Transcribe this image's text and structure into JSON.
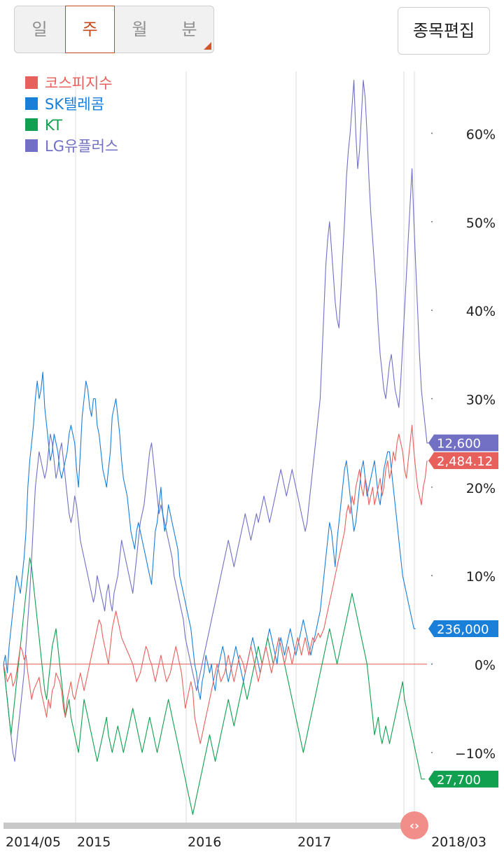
{
  "period_tabs": [
    {
      "label": "일",
      "active": false
    },
    {
      "label": "주",
      "active": true
    },
    {
      "label": "월",
      "active": false
    },
    {
      "label": "분",
      "active": false
    }
  ],
  "edit_button": {
    "label": "종목편집"
  },
  "colors": {
    "kospi": "#e8605c",
    "skt": "#1a7fd9",
    "kt": "#10a050",
    "lgu": "#7270c4",
    "grid": "#dcdcdc",
    "baseline": "#e8605c",
    "scroll": "#c8c8c8",
    "scroll_handle": "#f28e8a"
  },
  "icons": {
    "scroll_handle": "code-arrows-icon"
  },
  "chart_data": {
    "type": "line",
    "x_start": "2014/05",
    "x_end": "2018/03",
    "x_tick_labels": [
      "2014/05",
      "2015",
      "2016",
      "2017",
      "2018/03"
    ],
    "y_unit": "%",
    "ylim": [
      -18,
      67
    ],
    "y_ticks": [
      60,
      50,
      40,
      30,
      20,
      10,
      0,
      -10
    ],
    "y_tick_labels": [
      "60%",
      "50%",
      "40%",
      "30%",
      "20%",
      "10%",
      "0%",
      "−10%"
    ],
    "grid": true,
    "legend_position": "top-left",
    "series": [
      {
        "name": "코스피지수",
        "color": "#e8605c",
        "last_label": "2,484.12",
        "values": [
          0,
          -1,
          -2,
          -1.5,
          -1,
          -2.5,
          -2,
          -1,
          0.5,
          2,
          1.5,
          0.5,
          1,
          -1,
          -2.5,
          -4,
          -3,
          -2.5,
          -2,
          -1.5,
          -3,
          -4,
          -5,
          -6,
          -4,
          -5,
          -3,
          -2.5,
          -1,
          -1.5,
          -2,
          -3,
          -5,
          -6,
          -4,
          -3,
          -2,
          -3.5,
          -4,
          -3,
          -2,
          -1,
          -2,
          -3,
          -2,
          -1,
          0,
          1,
          2,
          3,
          4,
          5,
          4.5,
          3,
          2,
          1,
          0,
          2,
          4,
          5,
          6,
          5,
          4,
          3,
          2.5,
          2,
          1.5,
          1,
          0.5,
          0,
          -1,
          -2,
          -1.5,
          -1,
          0,
          1,
          2,
          1.5,
          0.5,
          0,
          -1,
          -2,
          -1,
          0,
          1,
          0,
          -1,
          -2,
          -1.5,
          -1,
          0,
          1,
          2,
          1,
          0,
          -1,
          -3,
          -5,
          -4,
          -3,
          -2,
          -3,
          -6,
          -7,
          -8,
          -9,
          -8,
          -7,
          -6,
          -5,
          -4,
          -3,
          -2,
          -1,
          0,
          -1,
          -2,
          -1.5,
          -1,
          0,
          1,
          0,
          -1,
          -2,
          -1,
          0,
          1,
          0.5,
          0,
          -1,
          0,
          1,
          2,
          1,
          0,
          -1,
          -2,
          -1,
          0,
          1,
          2,
          1,
          0,
          -1,
          0,
          1,
          2,
          3,
          2,
          1,
          0,
          1,
          2,
          1,
          0,
          1,
          2,
          3,
          2,
          1,
          2,
          3,
          2,
          1,
          2,
          3,
          2.5,
          3,
          3.5,
          3,
          3.5,
          4,
          5,
          6,
          7,
          8,
          9,
          10,
          11,
          12,
          13,
          14,
          15,
          17,
          18,
          17,
          19,
          18,
          20,
          21,
          22,
          20,
          19,
          21,
          20,
          18,
          19,
          20,
          18,
          19,
          20,
          21,
          19,
          20,
          22,
          23,
          21,
          22,
          24,
          23,
          25,
          26,
          25,
          24,
          22,
          21,
          23,
          25,
          27,
          24,
          22,
          20,
          19,
          18,
          20,
          21,
          23
        ]
      },
      {
        "name": "SK텔레콤",
        "color": "#1a7fd9",
        "last_label": "236,000",
        "values": [
          0,
          1,
          -1,
          2,
          4,
          6,
          8,
          10,
          9,
          8,
          10,
          12,
          15,
          20,
          23,
          25,
          27,
          30,
          32,
          30,
          31,
          33,
          29,
          27,
          25,
          23,
          24,
          26,
          25,
          24,
          22,
          21,
          22,
          23,
          24,
          26,
          27,
          26,
          25,
          22,
          20,
          24,
          28,
          30,
          32,
          31,
          29,
          28,
          30,
          30,
          27,
          26,
          24,
          22,
          21,
          20,
          22,
          24,
          28,
          29,
          30,
          28,
          26,
          23,
          21,
          20,
          19,
          17,
          15,
          14,
          13,
          15,
          16,
          15,
          14,
          13,
          12,
          11,
          10,
          9,
          12,
          15,
          16,
          18,
          20,
          17,
          15,
          16,
          18,
          17,
          16,
          15,
          14,
          13,
          10,
          9,
          8,
          7,
          6,
          5,
          4,
          2,
          0,
          -1,
          -3,
          -4,
          -2,
          -1,
          1,
          0,
          -1,
          0,
          -2,
          -3,
          -1,
          0,
          1,
          2,
          1,
          -1,
          -2,
          -1,
          0,
          1,
          2,
          1,
          0,
          -1,
          -2,
          -1,
          0,
          1,
          2,
          3,
          2,
          1,
          0,
          -1,
          0,
          1,
          2,
          3,
          4,
          3,
          2,
          1,
          0,
          2,
          3,
          2,
          1,
          2,
          3,
          4,
          3,
          2,
          1,
          2,
          3,
          4,
          5,
          4,
          3,
          2,
          1,
          2,
          3,
          4,
          5,
          6,
          8,
          10,
          12,
          14,
          16,
          15,
          13,
          11,
          14,
          16,
          18,
          20,
          22,
          23,
          21,
          19,
          17,
          15,
          16,
          18,
          20,
          22,
          23,
          21,
          19,
          20,
          21,
          22,
          23,
          21,
          19,
          18,
          20,
          22,
          23,
          24,
          24,
          22,
          20,
          18,
          16,
          14,
          12,
          10,
          9,
          8,
          7,
          6,
          5,
          4,
          4
        ]
      },
      {
        "name": "KT",
        "color": "#10a050",
        "last_label": "27,700",
        "values": [
          0,
          -2,
          -4,
          -6,
          -8,
          -6,
          -4,
          -2,
          0,
          2,
          4,
          6,
          8,
          10,
          12,
          11,
          9,
          7,
          5,
          3,
          1,
          -1,
          -3,
          -4,
          -2,
          0,
          2,
          3,
          4,
          2,
          0,
          -2,
          -4,
          -6,
          -5,
          -4,
          -6,
          -7,
          -8,
          -9,
          -10,
          -8,
          -6,
          -4,
          -5,
          -6,
          -7,
          -8,
          -9,
          -10,
          -11,
          -10,
          -9,
          -8,
          -7,
          -6,
          -8,
          -9,
          -10,
          -9,
          -8,
          -7,
          -8,
          -9,
          -10,
          -9,
          -8,
          -7,
          -6,
          -5,
          -6,
          -7,
          -8,
          -9,
          -10,
          -9,
          -8,
          -7,
          -6,
          -7,
          -8,
          -9,
          -10,
          -9,
          -8,
          -7,
          -6,
          -5,
          -4,
          -5,
          -6,
          -7,
          -8,
          -9,
          -10,
          -11,
          -12,
          -13,
          -14,
          -15,
          -16,
          -17,
          -16,
          -15,
          -14,
          -13,
          -12,
          -11,
          -10,
          -9,
          -8,
          -9,
          -10,
          -11,
          -10,
          -9,
          -8,
          -7,
          -6,
          -5,
          -4,
          -5,
          -6,
          -7,
          -6,
          -5,
          -4,
          -3,
          -2,
          -3,
          -4,
          -3,
          -2,
          -1,
          0,
          1,
          2,
          1,
          0,
          1,
          2,
          3,
          2,
          1,
          0,
          1,
          2,
          3,
          2,
          1,
          0,
          -1,
          -2,
          -3,
          -4,
          -5,
          -6,
          -7,
          -8,
          -9,
          -10,
          -9,
          -8,
          -7,
          -6,
          -5,
          -4,
          -3,
          -2,
          -1,
          0,
          1,
          2,
          3,
          4,
          3,
          2,
          1,
          0,
          1,
          2,
          3,
          4,
          5,
          6,
          7,
          8,
          7,
          6,
          5,
          4,
          3,
          2,
          1,
          0,
          -2,
          -4,
          -6,
          -8,
          -7,
          -6,
          -8,
          -9,
          -8,
          -7,
          -8,
          -9,
          -8,
          -7,
          -6,
          -5,
          -4,
          -3,
          -2,
          -4,
          -5,
          -6,
          -7,
          -8,
          -9,
          -10,
          -11,
          -12,
          -13,
          -13,
          -13
        ]
      },
      {
        "name": "LG유플러스",
        "color": "#7270c4",
        "last_label": "12,600",
        "values": [
          0,
          -2,
          -4,
          -6,
          -8,
          -10,
          -11,
          -9,
          -7,
          -5,
          -3,
          -1,
          2,
          5,
          8,
          12,
          16,
          20,
          22,
          24,
          23,
          22,
          21,
          22,
          24,
          26,
          25,
          23,
          21,
          22,
          24,
          25,
          23,
          21,
          19,
          17,
          16,
          17,
          19,
          18,
          16,
          14,
          13,
          12,
          11,
          10,
          9,
          8,
          7,
          8,
          10,
          9,
          8,
          7,
          6,
          8,
          9,
          7,
          6,
          8,
          9,
          10,
          12,
          14,
          13,
          12,
          11,
          10,
          9,
          8,
          10,
          12,
          14,
          16,
          17,
          18,
          20,
          22,
          24,
          25,
          23,
          21,
          19,
          17,
          18,
          17,
          16,
          15,
          14,
          13,
          12,
          10,
          9,
          8,
          7,
          6,
          5,
          3,
          2,
          1,
          0,
          -1,
          -2,
          -3,
          -2,
          -1,
          0,
          1,
          2,
          3,
          4,
          5,
          6,
          7,
          8,
          9,
          10,
          11,
          12,
          13,
          14,
          13,
          12,
          11,
          12,
          13,
          14,
          15,
          16,
          17,
          16,
          15,
          14,
          15,
          16,
          17,
          16,
          17,
          18,
          19,
          18,
          17,
          16,
          17,
          18,
          19,
          20,
          21,
          22,
          21,
          20,
          19,
          20,
          21,
          22,
          21,
          20,
          19,
          18,
          17,
          16,
          15,
          16,
          18,
          20,
          22,
          24,
          26,
          28,
          30,
          35,
          40,
          45,
          48,
          50,
          47,
          44,
          41,
          39,
          38,
          42,
          46,
          50,
          55,
          58,
          60,
          63,
          66,
          60,
          56,
          58,
          62,
          66,
          64,
          60,
          55,
          51,
          48,
          45,
          42,
          38,
          35,
          33,
          31,
          30,
          32,
          34,
          35,
          33,
          31,
          30,
          29,
          32,
          36,
          40,
          44,
          48,
          52,
          56,
          50,
          45,
          40,
          35,
          31,
          29,
          27,
          25,
          25
        ]
      }
    ]
  }
}
